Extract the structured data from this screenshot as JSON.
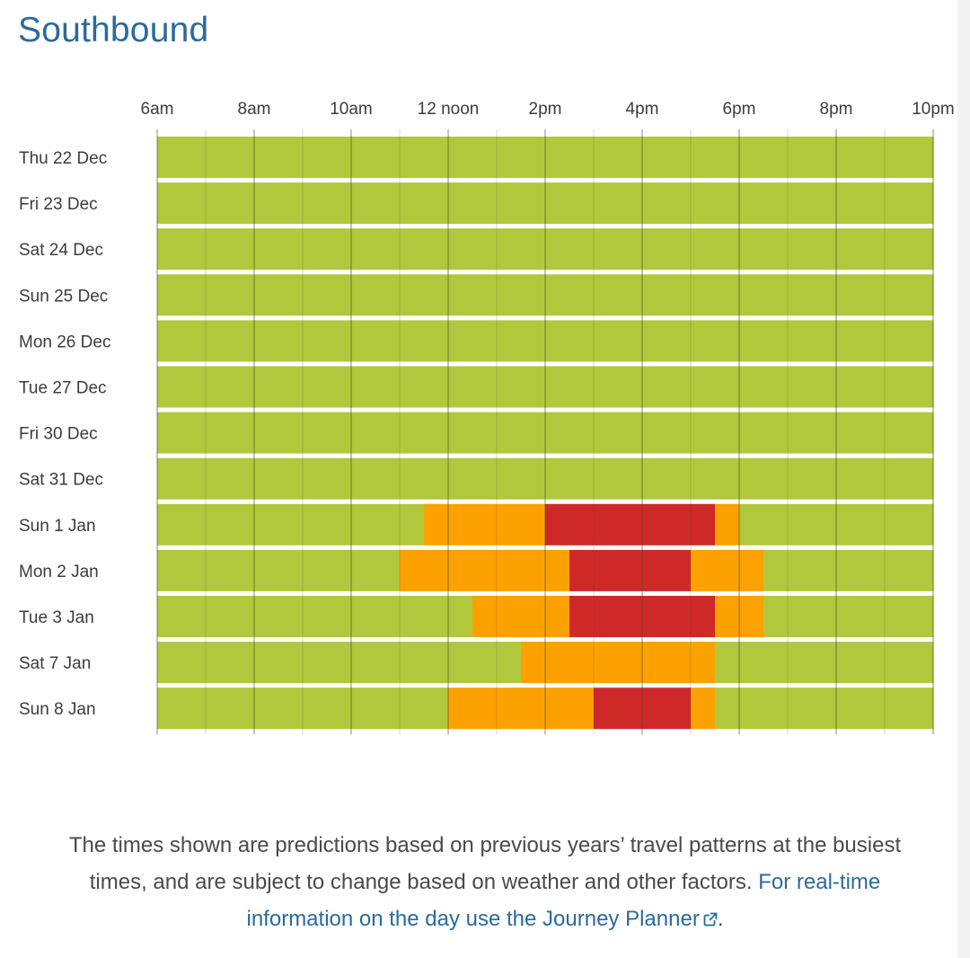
{
  "page": {
    "title": "Southbound",
    "footnote_text": "The times shown are predictions based on previous years’ travel patterns at the busiest times, and are subject to change based on weather and other factors.",
    "footnote_link": "For real-time information on the day use the Journey Planner",
    "footnote_end": ".",
    "link_color": "#2a6a9c"
  },
  "chart_data": {
    "type": "heatmap",
    "title": "Southbound",
    "x_axis": {
      "min": 6,
      "max": 22,
      "ticks": [
        {
          "hour": 6,
          "label": "6am"
        },
        {
          "hour": 8,
          "label": "8am"
        },
        {
          "hour": 10,
          "label": "10am"
        },
        {
          "hour": 12,
          "label": "12 noon"
        },
        {
          "hour": 14,
          "label": "2pm"
        },
        {
          "hour": 16,
          "label": "4pm"
        },
        {
          "hour": 18,
          "label": "6pm"
        },
        {
          "hour": 20,
          "label": "8pm"
        },
        {
          "hour": 22,
          "label": "10pm"
        }
      ],
      "position": "top"
    },
    "colors": {
      "quiet": "#b2c83c",
      "busy": "#fca100",
      "very_busy": "#cf2828"
    },
    "rows": [
      {
        "label": "Thu 22 Dec",
        "segments": [
          {
            "start": 6,
            "end": 22,
            "level": "quiet"
          }
        ]
      },
      {
        "label": "Fri 23 Dec",
        "segments": [
          {
            "start": 6,
            "end": 22,
            "level": "quiet"
          }
        ]
      },
      {
        "label": "Sat 24 Dec",
        "segments": [
          {
            "start": 6,
            "end": 22,
            "level": "quiet"
          }
        ]
      },
      {
        "label": "Sun 25 Dec",
        "segments": [
          {
            "start": 6,
            "end": 22,
            "level": "quiet"
          }
        ]
      },
      {
        "label": "Mon 26 Dec",
        "segments": [
          {
            "start": 6,
            "end": 22,
            "level": "quiet"
          }
        ]
      },
      {
        "label": "Tue 27 Dec",
        "segments": [
          {
            "start": 6,
            "end": 22,
            "level": "quiet"
          }
        ]
      },
      {
        "label": "Fri 30 Dec",
        "segments": [
          {
            "start": 6,
            "end": 22,
            "level": "quiet"
          }
        ]
      },
      {
        "label": "Sat 31 Dec",
        "segments": [
          {
            "start": 6,
            "end": 22,
            "level": "quiet"
          }
        ]
      },
      {
        "label": "Sun 1 Jan",
        "segments": [
          {
            "start": 6,
            "end": 11.5,
            "level": "quiet"
          },
          {
            "start": 11.5,
            "end": 14,
            "level": "busy"
          },
          {
            "start": 14,
            "end": 17.5,
            "level": "very_busy"
          },
          {
            "start": 17.5,
            "end": 18,
            "level": "busy"
          },
          {
            "start": 18,
            "end": 22,
            "level": "quiet"
          }
        ]
      },
      {
        "label": "Mon 2 Jan",
        "segments": [
          {
            "start": 6,
            "end": 11,
            "level": "quiet"
          },
          {
            "start": 11,
            "end": 14.5,
            "level": "busy"
          },
          {
            "start": 14.5,
            "end": 17,
            "level": "very_busy"
          },
          {
            "start": 17,
            "end": 18.5,
            "level": "busy"
          },
          {
            "start": 18.5,
            "end": 22,
            "level": "quiet"
          }
        ]
      },
      {
        "label": "Tue 3 Jan",
        "segments": [
          {
            "start": 6,
            "end": 12.5,
            "level": "quiet"
          },
          {
            "start": 12.5,
            "end": 14.5,
            "level": "busy"
          },
          {
            "start": 14.5,
            "end": 17.5,
            "level": "very_busy"
          },
          {
            "start": 17.5,
            "end": 18.5,
            "level": "busy"
          },
          {
            "start": 18.5,
            "end": 22,
            "level": "quiet"
          }
        ]
      },
      {
        "label": "Sat 7 Jan",
        "segments": [
          {
            "start": 6,
            "end": 13.5,
            "level": "quiet"
          },
          {
            "start": 13.5,
            "end": 17.5,
            "level": "busy"
          },
          {
            "start": 17.5,
            "end": 22,
            "level": "quiet"
          }
        ]
      },
      {
        "label": "Sun 8 Jan",
        "segments": [
          {
            "start": 6,
            "end": 12,
            "level": "quiet"
          },
          {
            "start": 12,
            "end": 15,
            "level": "busy"
          },
          {
            "start": 15,
            "end": 17,
            "level": "very_busy"
          },
          {
            "start": 17,
            "end": 17.5,
            "level": "busy"
          },
          {
            "start": 17.5,
            "end": 22,
            "level": "quiet"
          }
        ]
      }
    ]
  }
}
